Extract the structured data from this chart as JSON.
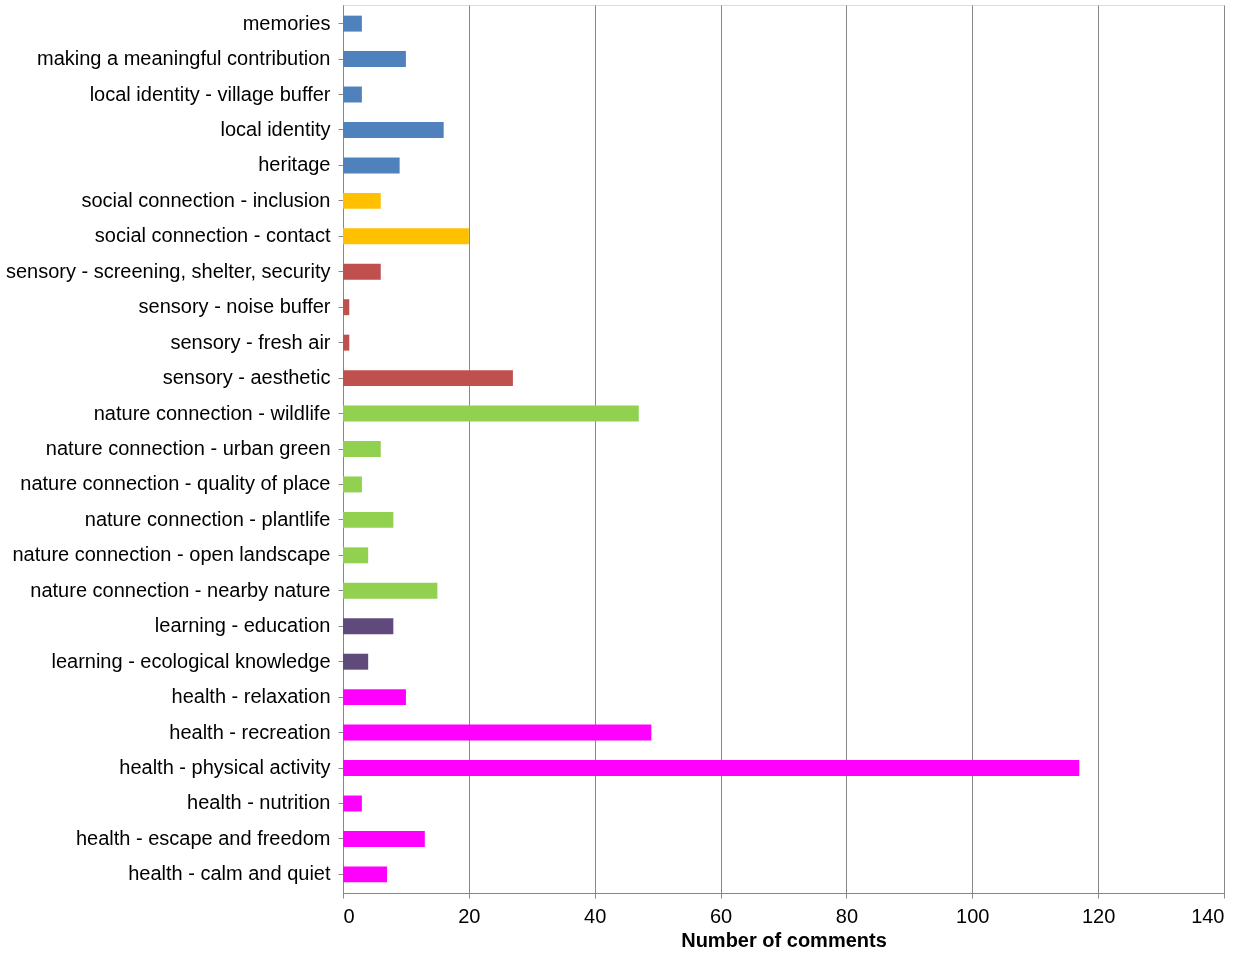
{
  "chart_data": {
    "type": "bar",
    "orientation": "horizontal",
    "xlabel": "Number of comments",
    "categories": [
      "memories",
      "making a meaningful contribution",
      "local identity - village buffer",
      "local identity",
      "heritage",
      "social connection - inclusion",
      "social connection - contact",
      "sensory - screening, shelter, security",
      "sensory - noise buffer",
      "sensory - fresh air",
      "sensory - aesthetic",
      "nature connection - wildlife",
      "nature connection - urban green",
      "nature connection - quality of place",
      "nature connection - plantlife",
      "nature connection - open landscape",
      "nature connection - nearby nature",
      "learning - education",
      "learning - ecological knowledge",
      "health - relaxation",
      "health - recreation",
      "health - physical activity",
      "health - nutrition",
      "health - escape and freedom",
      "health - calm and quiet"
    ],
    "values": [
      3,
      10,
      3,
      16,
      9,
      6,
      20,
      6,
      1,
      1,
      27,
      47,
      6,
      3,
      8,
      4,
      15,
      8,
      4,
      10,
      49,
      117,
      3,
      13,
      7
    ],
    "colors": [
      "#4f81bd",
      "#4f81bd",
      "#4f81bd",
      "#4f81bd",
      "#4f81bd",
      "#ffc000",
      "#ffc000",
      "#c0504d",
      "#c0504d",
      "#c0504d",
      "#c0504d",
      "#92d050",
      "#92d050",
      "#92d050",
      "#92d050",
      "#92d050",
      "#92d050",
      "#604a7b",
      "#604a7b",
      "#ff00ff",
      "#ff00ff",
      "#ff00ff",
      "#ff00ff",
      "#ff00ff",
      "#ff00ff"
    ],
    "xlim": [
      0,
      140
    ],
    "xticks": [
      0,
      20,
      40,
      60,
      80,
      100,
      120,
      140
    ],
    "grid": "x"
  }
}
